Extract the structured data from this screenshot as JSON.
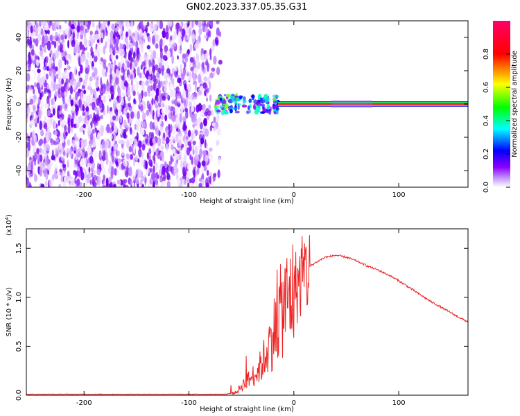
{
  "title": "GN02.2023.337.05.35.G31",
  "chart_data": [
    {
      "type": "heatmap",
      "xlabel": "Height of straight line (km)",
      "ylabel": "Frequency (Hz)",
      "xlim": [
        -255,
        166
      ],
      "ylim": [
        -50,
        50
      ],
      "x_ticks": [
        -200,
        -100,
        0,
        100
      ],
      "y_ticks": [
        -40,
        -20,
        0,
        20,
        40
      ],
      "grid": false,
      "colorbar": {
        "label": "Normalized spectral amplitude",
        "range": [
          0.0,
          1.0
        ],
        "ticks": [
          0.0,
          0.2,
          0.4,
          0.6,
          0.8
        ],
        "colors": [
          "#ffffff",
          "#8b00ff",
          "#0000ff",
          "#00ffff",
          "#00ff00",
          "#ffff00",
          "#ff0000",
          "#ff0066"
        ]
      },
      "features": {
        "noise_region_x": [
          -255,
          -75
        ],
        "transition_region_x": [
          -75,
          -15
        ],
        "carrier_line_x": [
          -15,
          166
        ],
        "carrier_frequency": 0
      }
    },
    {
      "type": "line",
      "xlabel": "Height of straight line (km)",
      "ylabel": "SNR (10 * v/v)",
      "y_multiplier": "(x10",
      "y_multiplier_exp": "4",
      "y_multiplier_close": ")",
      "xlim": [
        -255,
        166
      ],
      "ylim": [
        0.0,
        1.7
      ],
      "x_ticks": [
        -200,
        -100,
        0,
        100
      ],
      "y_ticks": [
        0.0,
        0.5,
        1.0,
        1.5
      ],
      "y_tick_labels": [
        "0.0",
        "0.5",
        "1.0",
        "1.5"
      ],
      "grid": false,
      "series": [
        {
          "color": "#ee2222",
          "x": [
            -255,
            -200,
            -150,
            -100,
            -65,
            -55,
            -50,
            -45,
            -40,
            -35,
            -30,
            -25,
            -20,
            -15,
            -10,
            -5,
            0,
            5,
            10,
            20,
            30,
            40,
            50,
            60,
            70,
            80,
            90,
            100,
            110,
            120,
            130,
            140,
            150,
            160,
            166
          ],
          "y": [
            0.01,
            0.01,
            0.01,
            0.01,
            0.01,
            0.03,
            0.1,
            0.15,
            0.2,
            0.25,
            0.35,
            0.5,
            0.65,
            0.85,
            0.95,
            1.05,
            1.12,
            1.2,
            1.28,
            1.35,
            1.41,
            1.43,
            1.41,
            1.37,
            1.32,
            1.28,
            1.23,
            1.17,
            1.1,
            1.03,
            0.96,
            0.9,
            0.84,
            0.78,
            0.75
          ]
        }
      ]
    }
  ]
}
